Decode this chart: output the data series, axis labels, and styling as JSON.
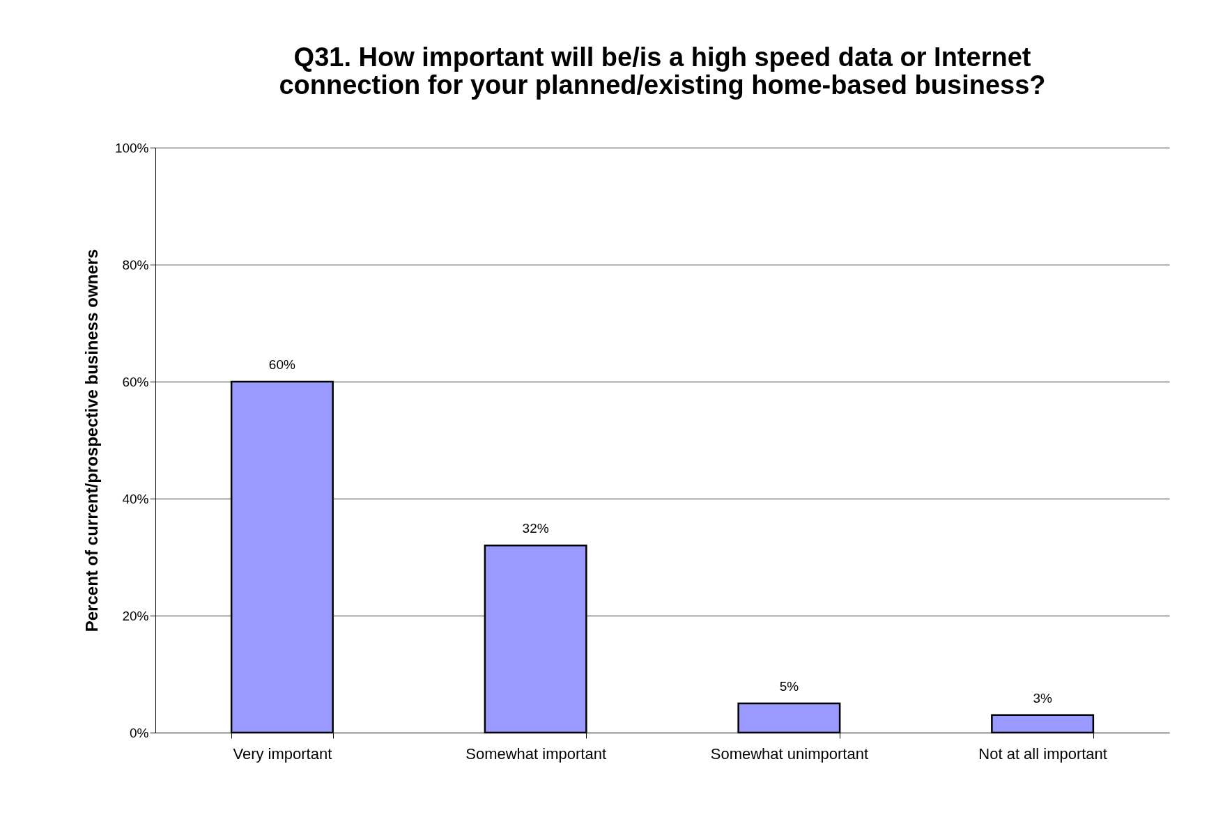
{
  "chart_data": {
    "type": "bar",
    "title": [
      "Q31.  How important will be/is a high speed data or Internet",
      "connection for your planned/existing home-based business?"
    ],
    "ylabel": "Percent of current/prospective business owners",
    "categories": [
      "Very important",
      "Somewhat important",
      "Somewhat unimportant",
      "Not at all important"
    ],
    "values": [
      60,
      32,
      5,
      3
    ],
    "value_labels": [
      "60%",
      "32%",
      "5%",
      "3%"
    ],
    "color": "#9999ff",
    "ylim": [
      0,
      100
    ],
    "yticks": [
      {
        "value": 0,
        "label": "0%"
      },
      {
        "value": 20,
        "label": "20%"
      },
      {
        "value": 40,
        "label": "40%"
      },
      {
        "value": 60,
        "label": "60%"
      },
      {
        "value": 80,
        "label": "80%"
      },
      {
        "value": 100,
        "label": "100%"
      }
    ],
    "grid": "y"
  }
}
